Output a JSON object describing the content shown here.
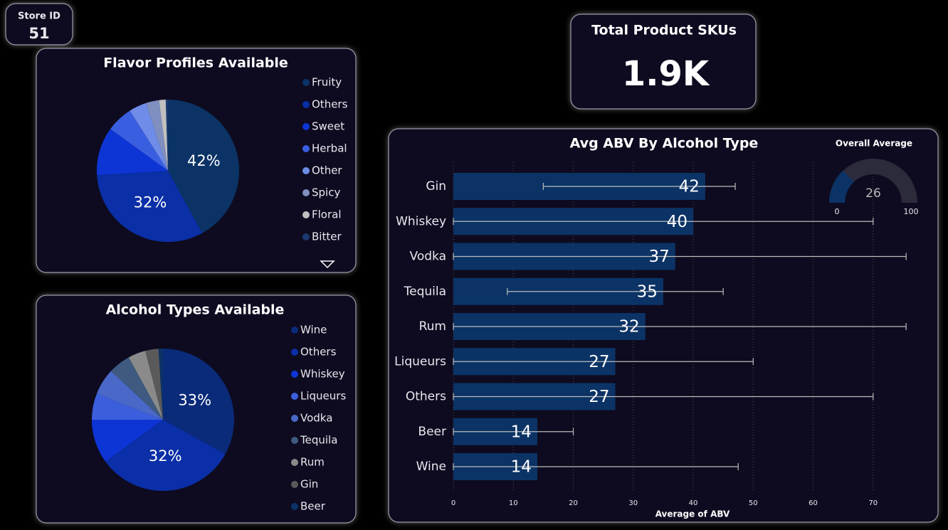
{
  "cards": [
    {
      "title": "Store ID",
      "value": 51
    },
    {
      "title": "Total Product SKUs",
      "value": "1.9K"
    }
  ],
  "chart_data": [
    {
      "type": "pie",
      "title": "Flavor Profiles Available",
      "categories": [
        "Fruity",
        "Others",
        "Sweet",
        "Herbal",
        "Other",
        "Spicy",
        "Floral",
        "Bitter"
      ],
      "values": [
        42,
        32,
        11,
        6,
        4,
        3,
        1.5,
        0.5
      ],
      "value_labels": [
        "42%",
        "32%",
        null,
        null,
        null,
        null,
        null,
        null
      ],
      "colors": [
        "#0b3366",
        "#0a2fa6",
        "#0d35d6",
        "#3a5ee0",
        "#6e8ce8",
        "#7f8fbf",
        "#c0c0c0",
        "#1a3a70"
      ]
    },
    {
      "type": "pie",
      "title": "Alcohol Types Available",
      "categories": [
        "Wine",
        "Others",
        "Whiskey",
        "Liqueurs",
        "Vodka",
        "Tequila",
        "Rum",
        "Gin",
        "Beer"
      ],
      "values": [
        33,
        32,
        10,
        6,
        6,
        5,
        4,
        3,
        1
      ],
      "value_labels": [
        "33%",
        "32%",
        null,
        null,
        null,
        null,
        null,
        null,
        null
      ],
      "colors": [
        "#0a2a7a",
        "#0b2fa8",
        "#0d35d6",
        "#3b5fdc",
        "#4a68c8",
        "#3e5a80",
        "#8a8a8a",
        "#5a5a5a",
        "#0b3366"
      ]
    },
    {
      "type": "hbar",
      "title": "Avg ABV By Alcohol Type",
      "x_label": "Average of ABV",
      "categories": [
        "Gin",
        "Whiskey",
        "Vodka",
        "Tequila",
        "Rum",
        "Liqueurs",
        "Others",
        "Beer",
        "Wine"
      ],
      "values": [
        42,
        40,
        37,
        35,
        32,
        27,
        27,
        14,
        14
      ],
      "error_low": [
        15,
        0,
        0,
        9,
        0,
        0,
        0,
        0,
        0
      ],
      "error_high": [
        47,
        70,
        75.5,
        45,
        75.5,
        50,
        70,
        20,
        47.5
      ],
      "color": "#0b3366",
      "xlim": [
        0,
        77.5
      ],
      "xticks": [
        0,
        10,
        20,
        30,
        40,
        50,
        60,
        70
      ],
      "grid": true
    },
    {
      "type": "gauge",
      "title": "Overall Average",
      "value": 26,
      "min": 0,
      "max": 100,
      "color": "#0b3366",
      "track_color": "#2b2b3b"
    }
  ]
}
